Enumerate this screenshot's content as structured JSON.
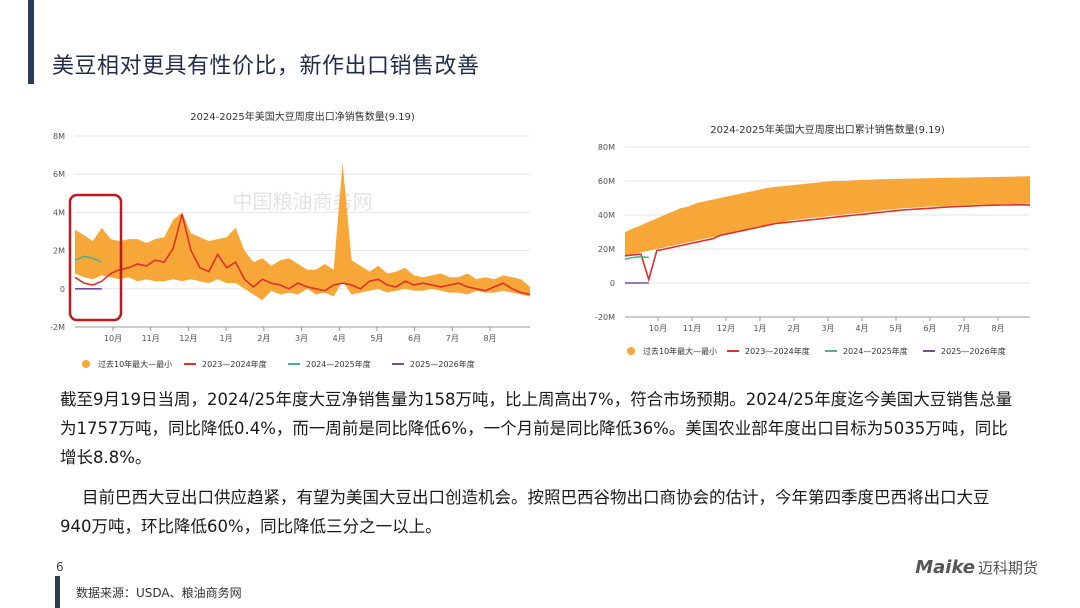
{
  "page": {
    "title": "美豆相对更具有性价比，新作出口销售改善",
    "paragraph1": "截至9月19日当周，2024/25年度大豆净销售量为158万吨，比上周高出7%，符合市场预期。2024/25年度迄今美国大豆销售总量为1757万吨，同比降低0.4%，而一周前是同比降低6%，一个月前是同比降低36%。美国农业部年度出口目标为5035万吨，同比增长8.8%。",
    "paragraph2": "目前巴西大豆出口供应趋紧，有望为美国大豆出口创造机会。按照巴西谷物出口商协会的估计，今年第四季度巴西将出口大豆940万吨，环比降低60%，同比降低三分之一以上。",
    "page_number": "6",
    "source": "数据来源：USDA、粮油商务网",
    "logo_text": "Maike",
    "logo_cn": "迈科期货",
    "watermark": "中国粮油商务网"
  },
  "colors": {
    "band": "#f7a638",
    "s2023": "#e0302a",
    "s2024": "#4fb38a",
    "s2025": "#7a4a9a",
    "highlight_box": "#c0181e",
    "heading": "#1f2d4a"
  },
  "chart_data": [
    {
      "type": "area",
      "title": "2024-2025年美国大豆周度出口净销售数量(9.19)",
      "y_ticks": [
        "8M",
        "6M",
        "4M",
        "2M",
        "0",
        "-2M"
      ],
      "ylim": [
        -2000000,
        8000000
      ],
      "x_ticks": [
        "10月",
        "11月",
        "12月",
        "1月",
        "2月",
        "3月",
        "4月",
        "5月",
        "6月",
        "7月",
        "8月"
      ],
      "week_count": 52,
      "grid": true,
      "legend": [
        "过去10年最大—最小",
        "2023—2024年度",
        "2024—2025年度",
        "2025—2026年度"
      ],
      "legend_position": "bottom",
      "band_upper": [
        3.1,
        2.8,
        2.5,
        3.2,
        2.6,
        2.5,
        2.6,
        2.6,
        2.4,
        2.6,
        2.7,
        3.6,
        4.0,
        2.9,
        2.7,
        2.5,
        2.6,
        2.7,
        3.2,
        2.0,
        1.4,
        1.6,
        1.2,
        1.5,
        1.6,
        1.3,
        1.0,
        1.0,
        1.3,
        1.0,
        6.6,
        1.5,
        1.2,
        0.9,
        1.2,
        0.8,
        0.9,
        1.1,
        0.7,
        0.6,
        0.7,
        0.8,
        0.6,
        0.6,
        0.8,
        0.5,
        0.6,
        0.5,
        0.7,
        0.6,
        0.5,
        0.1
      ],
      "band_lower": [
        0.8,
        0.6,
        0.5,
        0.7,
        0.6,
        0.5,
        0.6,
        0.4,
        0.5,
        0.4,
        0.4,
        0.5,
        0.4,
        0.5,
        0.4,
        0.3,
        0.5,
        0.3,
        0.3,
        0.0,
        -0.3,
        -0.6,
        -0.1,
        -0.3,
        -0.2,
        -0.3,
        0.0,
        -0.3,
        -0.2,
        -0.4,
        0.4,
        -0.3,
        -0.2,
        -0.1,
        0.0,
        -0.2,
        -0.1,
        0.0,
        -0.1,
        -0.1,
        0.0,
        -0.1,
        -0.2,
        -0.2,
        -0.3,
        -0.1,
        -0.2,
        -0.2,
        -0.1,
        -0.2,
        -0.3,
        -0.4
      ],
      "series": [
        {
          "name": "2023—2024年度",
          "color": "#e0302a",
          "start": 0,
          "values": [
            0.6,
            0.3,
            0.2,
            0.4,
            0.8,
            1.0,
            1.1,
            1.3,
            1.2,
            1.5,
            1.4,
            2.1,
            3.9,
            2.0,
            1.1,
            0.9,
            1.8,
            1.1,
            1.4,
            0.5,
            0.1,
            0.5,
            0.3,
            0.2,
            0.0,
            0.3,
            0.1,
            0.0,
            -0.1,
            0.2,
            0.3,
            0.2,
            0.0,
            0.4,
            0.5,
            0.2,
            0.1,
            0.4,
            0.2,
            0.3,
            0.2,
            0.1,
            0.2,
            0.3,
            0.1,
            0.0,
            -0.1,
            0.1,
            0.3,
            0.0,
            -0.2,
            -0.3
          ]
        },
        {
          "name": "2024—2025年度",
          "color": "#4fb38a",
          "start": 0,
          "values": [
            1.5,
            1.7,
            1.6,
            1.4
          ]
        },
        {
          "name": "2025—2026年度",
          "color": "#7a4a9a",
          "start": 0,
          "values": [
            0.0,
            0.0,
            0.0,
            0.0
          ]
        }
      ]
    },
    {
      "type": "area",
      "title": "2024-2025年美国大豆周度出口累计销售数量(9.19)",
      "y_ticks": [
        "80M",
        "60M",
        "40M",
        "20M",
        "0",
        "-20M"
      ],
      "ylim": [
        -20000000,
        80000000
      ],
      "x_ticks": [
        "10月",
        "11月",
        "12月",
        "1月",
        "2月",
        "3月",
        "4月",
        "5月",
        "6月",
        "7月",
        "8月"
      ],
      "week_count": 52,
      "grid": true,
      "legend": [
        "过去10年最大—最小",
        "2023—2024年度",
        "2024—2025年度",
        "2025—2026年度"
      ],
      "legend_position": "bottom",
      "band_upper": [
        30,
        32,
        34,
        36,
        38,
        40,
        42,
        44,
        45,
        47,
        48,
        49,
        50,
        51,
        52,
        53,
        54,
        55,
        56,
        56.5,
        57,
        57.5,
        58,
        58.5,
        59,
        59.5,
        59.8,
        60,
        60.2,
        60.4,
        60.6,
        60.8,
        61,
        61.1,
        61.2,
        61.3,
        61.4,
        61.5,
        61.6,
        61.7,
        61.8,
        61.9,
        62,
        62,
        62.1,
        62.2,
        62.3,
        62.4,
        62.5,
        62.6,
        62.7,
        62.8
      ],
      "band_lower": [
        16,
        17,
        18,
        19,
        20,
        21,
        22,
        23,
        24,
        25,
        26,
        27,
        28,
        29,
        30,
        31,
        32,
        33,
        34,
        35,
        36,
        37,
        37.5,
        38,
        38.5,
        39,
        39.5,
        40,
        40.5,
        41,
        41.5,
        42,
        42.5,
        43,
        43.5,
        44,
        44.2,
        44.5,
        44.8,
        45,
        45.2,
        45.4,
        45.6,
        45.8,
        46,
        46.1,
        46.2,
        46.3,
        46.4,
        46.5,
        46.6,
        46.7
      ],
      "series": [
        {
          "name": "2023—2024年度",
          "color": "#e0302a",
          "start": 0,
          "values": [
            16,
            16.5,
            17,
            2,
            19,
            20,
            21,
            22,
            23,
            24,
            25,
            26,
            28,
            29,
            30,
            31,
            32,
            33,
            34,
            35,
            35.5,
            36,
            36.5,
            37,
            37.5,
            38,
            38.5,
            39,
            39.5,
            40,
            40.5,
            41,
            41.5,
            42,
            42.5,
            43,
            43.3,
            43.6,
            43.9,
            44.2,
            44.5,
            44.8,
            45,
            45.2,
            45.4,
            45.6,
            45.7,
            45.8,
            45.9,
            46,
            46,
            45.8
          ]
        },
        {
          "name": "2024—2025年度",
          "color": "#4fb38a",
          "start": 0,
          "values": [
            14,
            15,
            15.5,
            15
          ]
        },
        {
          "name": "2025—2026年度",
          "color": "#7a4a9a",
          "start": 0,
          "values": [
            0,
            0,
            0,
            0
          ]
        }
      ]
    }
  ]
}
